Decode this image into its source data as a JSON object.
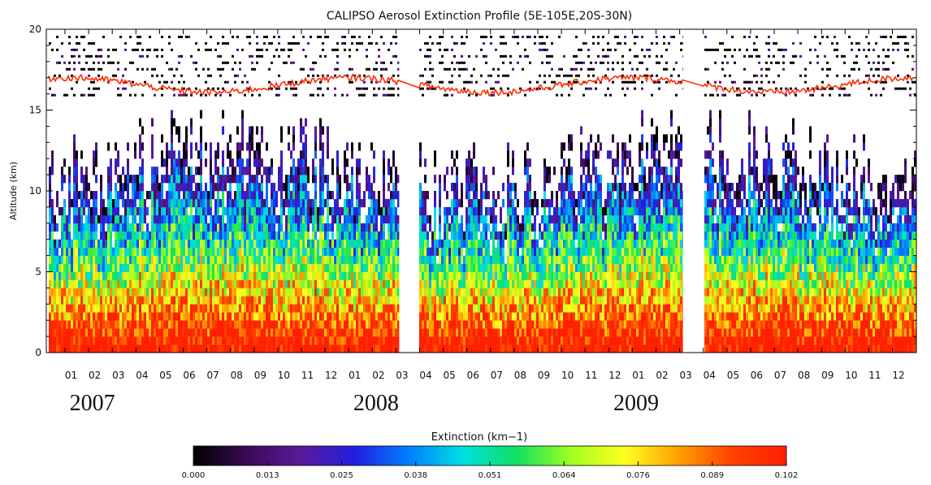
{
  "chart_data": {
    "type": "heatmap",
    "title": "CALIPSO Aerosol Extinction Profile (5E-105E,20S-30N)",
    "xlabel": "",
    "ylabel": "Altitude (km)",
    "ylim": [
      0,
      20
    ],
    "y_ticks": [
      0,
      5,
      10,
      15,
      20
    ],
    "x_start": "2007-01",
    "x_end": "2009-12",
    "month_labels": [
      "01",
      "02",
      "03",
      "04",
      "05",
      "06",
      "07",
      "08",
      "09",
      "10",
      "11",
      "12",
      "01",
      "02",
      "03",
      "04",
      "05",
      "06",
      "07",
      "08",
      "09",
      "10",
      "11",
      "12",
      "01",
      "02",
      "03",
      "04",
      "05",
      "06",
      "07",
      "08",
      "09",
      "10",
      "11",
      "12"
    ],
    "year_labels": [
      {
        "label": "2007",
        "month": "2007-02"
      },
      {
        "label": "2008",
        "month": "2008-02"
      },
      {
        "label": "2009",
        "month": "2009-01"
      }
    ],
    "data_gaps": [
      {
        "month": "2008-03"
      },
      {
        "month": "2009-03"
      }
    ],
    "tropopause_line": {
      "color": "#ff2a00",
      "altitude_range_km": [
        15.8,
        17.3
      ]
    },
    "colorbar": {
      "title": "Extinction (km−1)",
      "min": 0.0,
      "max": 0.102,
      "tick_labels": [
        "0.000",
        "0.013",
        "0.025",
        "0.038",
        "0.051",
        "0.064",
        "0.076",
        "0.089",
        "0.102"
      ],
      "colors": [
        "#000000",
        "#3a0a55",
        "#5a1a9a",
        "#2020e0",
        "#0080ff",
        "#00e0e0",
        "#10e060",
        "#a0ff20",
        "#ffff20",
        "#ffa000",
        "#ff4000",
        "#ff2000"
      ]
    },
    "grid": false
  }
}
